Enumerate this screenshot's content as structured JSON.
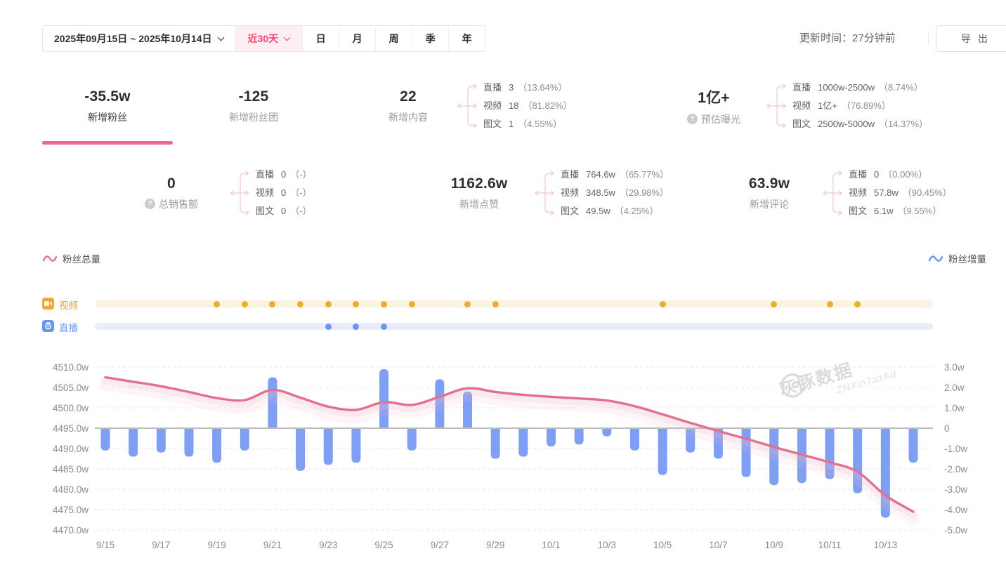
{
  "toolbar": {
    "date_range": "2025年09月15日 ~ 2025年10月14日",
    "quick_range": "近30天",
    "period_tabs": [
      "日",
      "月",
      "周",
      "季",
      "年"
    ],
    "updated": "更新时间：27分钟前",
    "export_label": "导出"
  },
  "stats": {
    "row1": [
      {
        "value": "-35.5w",
        "label": "新增粉丝",
        "active": true
      },
      {
        "value": "-125",
        "label": "新增粉丝团"
      },
      {
        "value": "22",
        "label": "新增内容",
        "breakdown": [
          {
            "name": "直播",
            "value": "3",
            "pct": "（13.64%）"
          },
          {
            "name": "视频",
            "value": "18",
            "pct": "（81.82%）"
          },
          {
            "name": "图文",
            "value": "1",
            "pct": "（4.55%）"
          }
        ]
      },
      {
        "value": "1亿+",
        "label": "预估曝光",
        "help": true,
        "breakdown": [
          {
            "name": "直播",
            "value": "1000w-2500w",
            "pct": "（8.74%）"
          },
          {
            "name": "视频",
            "value": "1亿+",
            "pct": "（76.89%）"
          },
          {
            "name": "图文",
            "value": "2500w-5000w",
            "pct": "（14.37%）"
          }
        ]
      }
    ],
    "row2": [
      {
        "value": "0",
        "label": "总销售额",
        "help": true,
        "breakdown": [
          {
            "name": "直播",
            "value": "0",
            "pct": "（-）"
          },
          {
            "name": "视频",
            "value": "0",
            "pct": "（-）"
          },
          {
            "name": "图文",
            "value": "0",
            "pct": "（-）"
          }
        ]
      },
      {
        "value": "1162.6w",
        "label": "新增点赞",
        "breakdown": [
          {
            "name": "直播",
            "value": "764.6w",
            "pct": "（65.77%）"
          },
          {
            "name": "视频",
            "value": "348.5w",
            "pct": "（29.98%）"
          },
          {
            "name": "图文",
            "value": "49.5w",
            "pct": "（4.25%）"
          }
        ]
      },
      {
        "value": "63.9w",
        "label": "新增评论",
        "breakdown": [
          {
            "name": "直播",
            "value": "0",
            "pct": "（0.00%）"
          },
          {
            "name": "视频",
            "value": "57.8w",
            "pct": "（90.45%）"
          },
          {
            "name": "图文",
            "value": "6.1w",
            "pct": "（9.55%）"
          }
        ]
      }
    ]
  },
  "legend": {
    "left": "粉丝总量",
    "right": "粉丝增量"
  },
  "timeline": {
    "video_label": "视频",
    "live_label": "直播"
  },
  "watermark": {
    "brand": "灰豚数据",
    "code": "ZNXin7azAd"
  },
  "colors": {
    "accent_pink": "#F5476F",
    "line_pink": "#E4708F",
    "line_glow": "#F2B7C6",
    "bar_blue": "#7E9FF4",
    "video_orange": "#F0AA33",
    "live_blue": "#6B96F0",
    "grid": "#E7E7E7",
    "zero_line": "#BDBDBD",
    "tick_text": "#8C8C8C"
  },
  "chart_data": {
    "type": "line+bar",
    "x": [
      "9/15",
      "9/16",
      "9/17",
      "9/18",
      "9/19",
      "9/20",
      "9/21",
      "9/22",
      "9/23",
      "9/24",
      "9/25",
      "9/26",
      "9/27",
      "9/28",
      "9/29",
      "9/30",
      "10/1",
      "10/2",
      "10/3",
      "10/4",
      "10/5",
      "10/6",
      "10/7",
      "10/8",
      "10/9",
      "10/10",
      "10/11",
      "10/12",
      "10/13",
      "10/14"
    ],
    "x_tick_labels": [
      "9/15",
      "9/17",
      "9/19",
      "9/21",
      "9/23",
      "9/25",
      "9/27",
      "9/29",
      "10/1",
      "10/3",
      "10/5",
      "10/7",
      "10/9",
      "10/11",
      "10/13"
    ],
    "series": [
      {
        "name": "粉丝总量",
        "type": "line",
        "axis": "left",
        "unit": "w",
        "values": [
          4507.5,
          4506.4,
          4505.3,
          4503.9,
          4502.4,
          4501.9,
          4504.4,
          4502.5,
          4500.3,
          4499.5,
          4501.4,
          4500.7,
          4502.7,
          4504.8,
          4503.9,
          4503.2,
          4502.7,
          4502.3,
          4501.8,
          4500.4,
          4498.4,
          4496.3,
          4494.3,
          4492.4,
          4490.4,
          4488.5,
          4486.6,
          4484.3,
          4478.5,
          4474.5
        ]
      },
      {
        "name": "粉丝增量",
        "type": "bar",
        "axis": "right",
        "unit": "w",
        "values": [
          -1.1,
          -1.4,
          -1.2,
          -1.4,
          -1.7,
          -1.1,
          2.5,
          -2.1,
          -1.8,
          -1.7,
          2.9,
          -1.1,
          2.4,
          1.8,
          -1.5,
          -1.4,
          -0.9,
          -0.8,
          -0.4,
          -1.1,
          -2.3,
          -1.2,
          -1.5,
          -2.4,
          -2.8,
          -2.7,
          -2.5,
          -3.2,
          -4.4,
          -1.7
        ]
      }
    ],
    "left_axis": {
      "min": 4470,
      "max": 4510,
      "step": 5,
      "ticks": [
        "4510.0w",
        "4505.0w",
        "4500.0w",
        "4495.0w",
        "4490.0w",
        "4485.0w",
        "4480.0w",
        "4475.0w",
        "4470.0w"
      ]
    },
    "right_axis": {
      "min": -5,
      "max": 3,
      "step": 1,
      "ticks": [
        "3.0w",
        "2.0w",
        "1.0w",
        "0",
        "-1.0w",
        "-2.0w",
        "-3.0w",
        "-4.0w",
        "-5.0w"
      ]
    },
    "grid": "dashed",
    "video_days": [
      "9/19",
      "9/20",
      "9/21",
      "9/22",
      "9/23",
      "9/24",
      "9/25",
      "9/26",
      "9/28",
      "9/29",
      "10/5",
      "10/9",
      "10/11",
      "10/12"
    ],
    "live_days": [
      "9/23",
      "9/24",
      "9/25"
    ]
  }
}
